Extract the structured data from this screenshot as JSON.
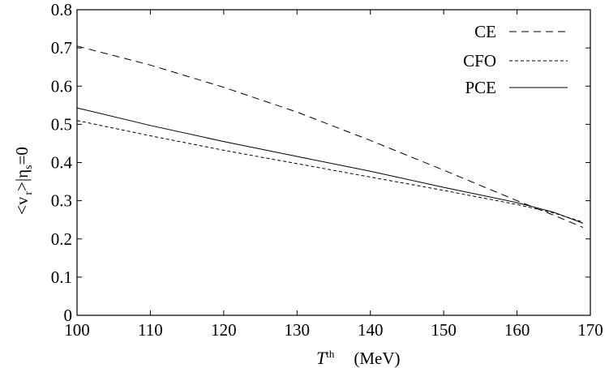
{
  "chart_data": {
    "type": "line",
    "title": "",
    "xlabel": {
      "symbol": "T",
      "sup": "th",
      "unit": "(MeV)"
    },
    "ylabel": {
      "text": "<v",
      "sub": "r",
      "close": ">|",
      "eta": "η",
      "eta_sub": "s",
      "eq": "=0"
    },
    "xlim": [
      100,
      170
    ],
    "ylim": [
      0,
      0.8
    ],
    "x_ticks": [
      "100",
      "110",
      "120",
      "130",
      "140",
      "150",
      "160",
      "170"
    ],
    "y_ticks": [
      "0",
      "0.1",
      "0.2",
      "0.3",
      "0.4",
      "0.5",
      "0.6",
      "0.7",
      "0.8"
    ],
    "x_tick_values": [
      100,
      110,
      120,
      130,
      140,
      150,
      160,
      170
    ],
    "y_tick_values": [
      0,
      0.1,
      0.2,
      0.3,
      0.4,
      0.5,
      0.6,
      0.7,
      0.8
    ],
    "grid": false,
    "legend_position": "top-right",
    "series": [
      {
        "name": "CE",
        "dash": "long-dash",
        "x": [
          100,
          110,
          120,
          130,
          140,
          150,
          160,
          165,
          169
        ],
        "y": [
          0.705,
          0.655,
          0.597,
          0.532,
          0.458,
          0.38,
          0.3,
          0.262,
          0.23
        ]
      },
      {
        "name": "CFO",
        "dash": "short-dash",
        "x": [
          100,
          110,
          120,
          130,
          140,
          150,
          160,
          165,
          169
        ],
        "y": [
          0.51,
          0.47,
          0.432,
          0.397,
          0.362,
          0.327,
          0.29,
          0.268,
          0.244
        ]
      },
      {
        "name": "PCE",
        "dash": "solid",
        "x": [
          100,
          110,
          120,
          130,
          140,
          150,
          160,
          165,
          169
        ],
        "y": [
          0.543,
          0.497,
          0.455,
          0.416,
          0.377,
          0.335,
          0.295,
          0.27,
          0.241
        ]
      }
    ]
  }
}
